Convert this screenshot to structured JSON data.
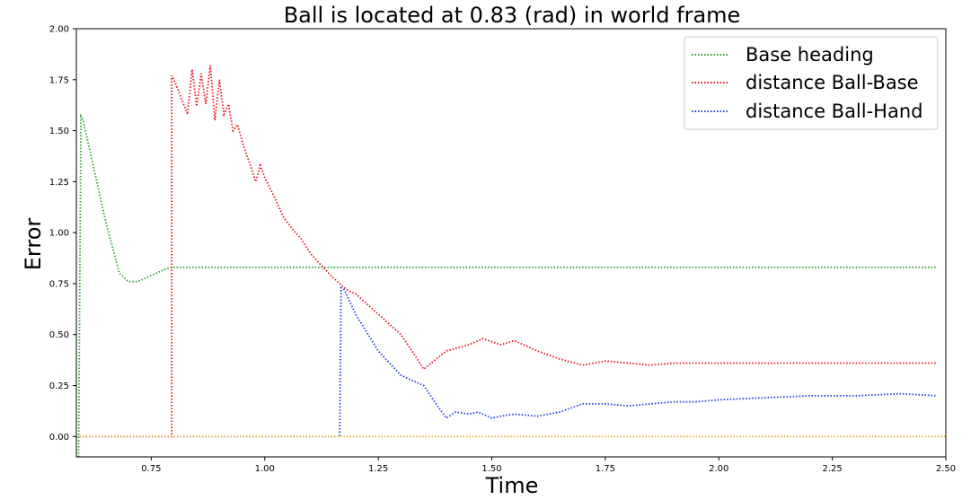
{
  "chart_data": {
    "type": "line",
    "title": "Ball is located at 0.83 (rad) in world frame",
    "xlabel": "Time",
    "ylabel": "Error",
    "xlim": [
      0.585,
      2.5
    ],
    "ylim": [
      -0.1,
      2.0
    ],
    "xticks": [
      "0.75",
      "1.00",
      "1.25",
      "1.50",
      "1.75",
      "2.00",
      "2.25",
      "2.50"
    ],
    "yticks": [
      "0.00",
      "0.25",
      "0.50",
      "0.75",
      "1.00",
      "1.25",
      "1.50",
      "1.75",
      "2.00"
    ],
    "grid": false,
    "legend_position": "top-right",
    "series": [
      {
        "name": "Base heading",
        "color": "#2ca02c",
        "x": [
          0.59,
          0.595,
          0.6,
          0.62,
          0.65,
          0.68,
          0.7,
          0.72,
          0.75,
          0.78,
          0.795,
          0.8,
          2.48
        ],
        "y": [
          -0.1,
          1.57,
          1.55,
          1.35,
          1.05,
          0.8,
          0.76,
          0.76,
          0.79,
          0.82,
          0.83,
          0.83,
          0.83
        ]
      },
      {
        "name": "distance Ball-Base",
        "color": "#e8121e",
        "x": [
          0.585,
          0.795,
          0.795,
          0.8,
          0.83,
          0.84,
          0.85,
          0.86,
          0.87,
          0.88,
          0.89,
          0.9,
          0.91,
          0.92,
          0.93,
          0.94,
          0.95,
          0.96,
          0.97,
          0.98,
          0.99,
          1.0,
          1.02,
          1.04,
          1.06,
          1.08,
          1.1,
          1.12,
          1.15,
          1.18,
          1.2,
          1.25,
          1.3,
          1.33,
          1.35,
          1.4,
          1.45,
          1.48,
          1.52,
          1.55,
          1.6,
          1.65,
          1.7,
          1.75,
          1.8,
          1.85,
          1.9,
          2.0,
          2.1,
          2.2,
          2.3,
          2.4,
          2.48
        ],
        "y": [
          0.0,
          0.0,
          1.77,
          1.75,
          1.58,
          1.8,
          1.62,
          1.78,
          1.63,
          1.82,
          1.55,
          1.75,
          1.58,
          1.63,
          1.5,
          1.53,
          1.45,
          1.38,
          1.32,
          1.25,
          1.33,
          1.27,
          1.18,
          1.08,
          1.02,
          0.97,
          0.9,
          0.85,
          0.78,
          0.72,
          0.7,
          0.6,
          0.5,
          0.4,
          0.33,
          0.42,
          0.45,
          0.48,
          0.45,
          0.47,
          0.42,
          0.38,
          0.35,
          0.37,
          0.36,
          0.35,
          0.36,
          0.36,
          0.36,
          0.36,
          0.36,
          0.36,
          0.36
        ]
      },
      {
        "name": "distance Ball-Hand",
        "color": "#1f3fe0",
        "x": [
          0.585,
          1.165,
          1.168,
          1.175,
          1.2,
          1.25,
          1.3,
          1.35,
          1.38,
          1.4,
          1.42,
          1.45,
          1.47,
          1.5,
          1.52,
          1.55,
          1.6,
          1.65,
          1.7,
          1.75,
          1.8,
          1.85,
          1.9,
          1.95,
          2.0,
          2.1,
          2.2,
          2.3,
          2.4,
          2.48
        ],
        "y": [
          0.0,
          0.0,
          0.73,
          0.72,
          0.6,
          0.42,
          0.3,
          0.25,
          0.15,
          0.09,
          0.12,
          0.11,
          0.12,
          0.09,
          0.1,
          0.11,
          0.1,
          0.12,
          0.16,
          0.16,
          0.15,
          0.16,
          0.17,
          0.17,
          0.18,
          0.19,
          0.2,
          0.2,
          0.21,
          0.2
        ]
      },
      {
        "name": "",
        "color": "#f0b041",
        "x": [
          0.585,
          2.5
        ],
        "y": [
          0.0,
          0.0
        ]
      }
    ]
  }
}
